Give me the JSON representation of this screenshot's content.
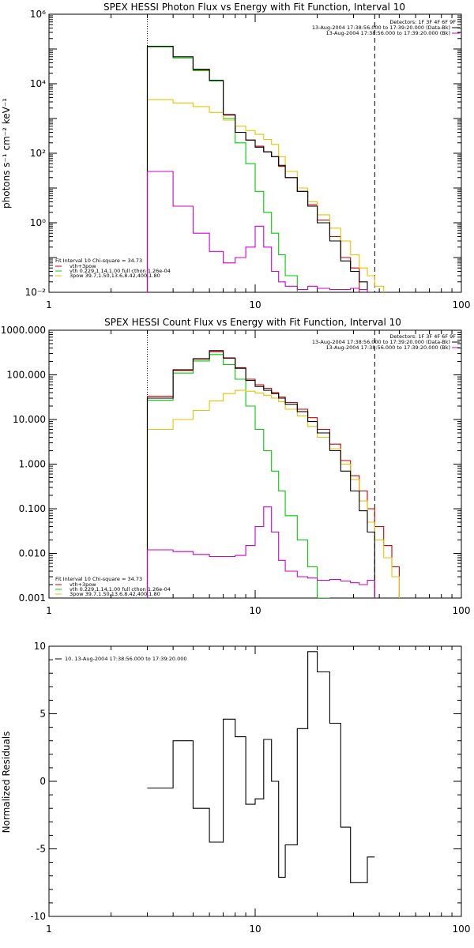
{
  "panels": [
    {
      "key": "photon",
      "title": "SPEX HESSI Photon Flux vs Energy with Fit Function, Interval 10",
      "ylabel": "photons s⁻¹ cm⁻² keV⁻¹",
      "info": [
        "Detectors: 1F 3F 4F 6F 9F",
        "13-Aug-2004 17:38:56.000 to 17:39:20.000 (Data-Bk)",
        "13-Aug-2004 17:38:56.000 to 17:39:20.000 (Bk)"
      ],
      "legend": [
        "Fit Interval 10   Chi-square = 34.73",
        "vth+3pow",
        "vth 0.229,1.14,1.00  full cthon 1.26e-04",
        "3pow 39.7,1.50,13.6,8.42,400,1.80"
      ]
    },
    {
      "key": "count",
      "title": "SPEX HESSI Count Flux vs Energy with Fit Function, Interval 10",
      "ylabel": "",
      "info": [
        "Detectors: 1F 3F 4F 6F 9F",
        "13-Aug-2004 17:38:56.000 to 17:39:20.000 (Data-Bk)",
        "13-Aug-2004 17:38:56.000 to 17:39:20.000 (Bk)"
      ],
      "legend": [
        "Fit Interval 10   Chi-square = 34.73",
        "vth+3pow",
        "vth 0.229,1.14,1.00  full cthon 1.26e-04",
        "3pow 39.7,1.50,13.6,8.42,400,1.80"
      ]
    },
    {
      "key": "residuals",
      "title": "",
      "ylabel": "Normalized Residuals",
      "info": [],
      "legend": [
        "10. 13-Aug-2004 17:38:56.000 to 17:39:20.000"
      ]
    }
  ],
  "colors": {
    "data": "#000000",
    "total_fit": "#cc0000",
    "thermal": "#00cc00",
    "power_law": "#e6c300",
    "background": "#cc00cc",
    "axes": "#000000",
    "background_page": "#ffffff"
  },
  "chart_data": [
    {
      "type": "line",
      "style": "step",
      "title": "SPEX HESSI Photon Flux vs Energy with Fit Function, Interval 10",
      "xlabel": "",
      "ylabel": "photons s⁻¹ cm⁻² keV⁻¹",
      "xscale": "log",
      "yscale": "log",
      "xlim": [
        1,
        100
      ],
      "ylim": [
        0.01,
        1000000
      ],
      "x_tick_labels": [
        "1",
        "10",
        "100"
      ],
      "y_tick_labels": [
        "10⁻²",
        "10⁰",
        "10²",
        "10⁴",
        "10⁶"
      ],
      "grid": false,
      "legend_position": "bottom-left",
      "vertical_lines": [
        {
          "x": 3,
          "style": "dotted"
        },
        {
          "x": 38,
          "style": "dashed"
        }
      ],
      "x_edges": [
        3,
        4,
        5,
        6,
        7,
        8,
        9,
        10,
        11,
        12,
        13,
        14,
        16,
        18,
        20,
        23,
        26,
        29,
        32,
        35,
        38,
        42,
        46
      ],
      "series": [
        {
          "name": "vth+3pow",
          "color": "#cc0000",
          "values": [
            115000,
            55000,
            25000,
            12000,
            1250,
            400,
            240,
            160,
            110,
            80,
            42,
            20,
            8,
            3.3,
            1.2,
            0.4,
            0.1,
            0.05,
            null,
            null,
            null,
            null
          ]
        },
        {
          "name": "vth 0.229,1.14,1.00  full cthon 1.26e-04",
          "color": "#00cc00",
          "values": [
            115000,
            55000,
            24000,
            12000,
            1000,
            200,
            50,
            8,
            2,
            0.5,
            0.12,
            0.03,
            null,
            null,
            null,
            null,
            null,
            null,
            null,
            null,
            null,
            null
          ]
        },
        {
          "name": "3pow 39.7,1.50,13.6,8.42,400,1.80",
          "color": "#e6c300",
          "values": [
            3500,
            2800,
            2200,
            1500,
            900,
            600,
            450,
            350,
            250,
            180,
            80,
            30,
            10,
            4,
            1.7,
            0.7,
            0.3,
            0.12,
            0.05,
            0.03,
            0.015,
            null
          ]
        },
        {
          "name": "Data-Bk",
          "color": "#000000",
          "values": [
            120000,
            60000,
            26000,
            12500,
            1300,
            400,
            240,
            150,
            110,
            80,
            45,
            20,
            8,
            3,
            1,
            0.3,
            0.08,
            0.04,
            0.02,
            0.01,
            null,
            null
          ]
        },
        {
          "name": "Bk",
          "color": "#cc00cc",
          "values": [
            30,
            3,
            0.5,
            0.15,
            0.07,
            0.1,
            0.2,
            0.8,
            0.2,
            0.04,
            0.02,
            0.015,
            0.012,
            0.015,
            0.013,
            0.012,
            0.012,
            0.013,
            0.012,
            null,
            null,
            null
          ]
        }
      ]
    },
    {
      "type": "line",
      "style": "step",
      "title": "SPEX HESSI Count Flux vs Energy with Fit Function, Interval 10",
      "xlabel": "",
      "ylabel": "",
      "xscale": "log",
      "yscale": "log",
      "xlim": [
        1,
        100
      ],
      "ylim": [
        0.001,
        1000
      ],
      "x_tick_labels": [
        "1",
        "10",
        "100"
      ],
      "y_tick_labels": [
        "0.001",
        "0.010",
        "0.100",
        "1.000",
        "10.000",
        "100.000",
        "1000.000"
      ],
      "grid": false,
      "legend_position": "bottom-left",
      "vertical_lines": [
        {
          "x": 3,
          "style": "dotted"
        },
        {
          "x": 38,
          "style": "dashed"
        }
      ],
      "x_edges": [
        3,
        4,
        5,
        6,
        7,
        8,
        9,
        10,
        11,
        12,
        13,
        14,
        16,
        18,
        20,
        23,
        26,
        29,
        32,
        35,
        38,
        42,
        46,
        50
      ],
      "series": [
        {
          "name": "vth+3pow",
          "color": "#cc0000",
          "values": [
            33,
            125,
            225,
            330,
            235,
            145,
            80,
            60,
            50,
            40,
            32,
            24,
            17,
            11,
            6,
            2.8,
            1.2,
            0.55,
            0.25,
            0.1,
            0.04,
            0.015,
            0.005
          ]
        },
        {
          "name": "vth 0.229,1.14,1.00  full cthon 1.26e-04",
          "color": "#00cc00",
          "values": [
            27,
            110,
            205,
            285,
            170,
            80,
            20,
            6,
            2,
            0.7,
            0.25,
            0.07,
            0.02,
            0.005,
            0.001,
            null,
            null,
            null,
            null,
            null,
            null,
            null,
            null
          ]
        },
        {
          "name": "3pow 39.7,1.50,13.6,8.42,400,1.80",
          "color": "#e6c300",
          "values": [
            6,
            10,
            16,
            26,
            38,
            45,
            43,
            39,
            35,
            30,
            25,
            17,
            12,
            7,
            4,
            2.2,
            1,
            0.45,
            0.15,
            0.05,
            0.02,
            0.008,
            0.003
          ]
        },
        {
          "name": "Data-Bk",
          "color": "#000000",
          "values": [
            30,
            130,
            230,
            350,
            240,
            140,
            75,
            55,
            45,
            38,
            30,
            22,
            15,
            9,
            5,
            2,
            0.7,
            0.25,
            0.09,
            0.03,
            null,
            null,
            null
          ]
        },
        {
          "name": "Bk",
          "color": "#cc00cc",
          "values": [
            0.012,
            0.011,
            0.0095,
            0.0085,
            0.0085,
            0.009,
            0.015,
            0.04,
            0.11,
            0.03,
            0.007,
            0.004,
            0.003,
            0.0028,
            0.0025,
            0.0026,
            0.0024,
            0.0022,
            0.002,
            0.0025,
            null,
            null,
            null
          ]
        }
      ]
    },
    {
      "type": "line",
      "style": "step",
      "title": "",
      "xlabel": "",
      "ylabel": "Normalized Residuals",
      "xscale": "log",
      "yscale": "linear",
      "xlim": [
        1,
        100
      ],
      "ylim": [
        -10,
        10
      ],
      "x_tick_labels": [
        "1",
        "10",
        "100"
      ],
      "y_tick_labels": [
        "-10",
        "-5",
        "0",
        "5",
        "10"
      ],
      "grid": false,
      "legend_position": "top-left",
      "x_edges": [
        3,
        4,
        5,
        6,
        7,
        8,
        9,
        10,
        11,
        12,
        13,
        14,
        16,
        18,
        20,
        23,
        26,
        29,
        32,
        35,
        38
      ],
      "series": [
        {
          "name": "10. 13-Aug-2004 17:38:56.000 to 17:39:20.000",
          "color": "#000000",
          "values": [
            -0.5,
            3.0,
            -2.0,
            -4.5,
            4.6,
            3.3,
            -1.7,
            -1.3,
            3.1,
            0.0,
            -7.1,
            -4.7,
            3.9,
            9.6,
            8.1,
            4.3,
            -3.4,
            -7.5,
            -7.5,
            -5.6
          ]
        }
      ]
    }
  ]
}
